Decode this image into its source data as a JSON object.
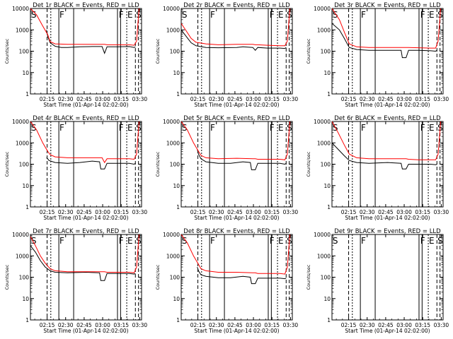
{
  "chart_data": [
    {
      "type": "line",
      "title": "Det 1r BLACK = Events, RED = LLD",
      "xlabel": "Start Time (01-Apr-14 02:02:00)",
      "ylabel": "Counts/sec",
      "ylog": true,
      "ylim": [
        1,
        10000
      ],
      "yticks": [
        "1",
        "10",
        "100",
        "1000",
        "10000"
      ],
      "xticks": [
        "02:15",
        "02:30",
        "02:45",
        "03:00",
        "03:15",
        "03:30"
      ],
      "markers": [
        "S",
        "F",
        "F",
        "E",
        "S"
      ],
      "series": [
        {
          "color": "#000000",
          "x": [
            13,
            14,
            16,
            20,
            25,
            30,
            40,
            50,
            58,
            60,
            62,
            70,
            80,
            84,
            85
          ],
          "y": [
            1000,
            500,
            250,
            170,
            150,
            150,
            160,
            165,
            165,
            80,
            160,
            160,
            165,
            150,
            160
          ]
        },
        {
          "color": "#ff0000",
          "x": [
            0,
            5,
            10,
            14,
            16,
            20,
            30,
            45,
            58,
            60,
            62,
            70,
            80,
            84,
            86,
            88
          ],
          "y": [
            10000,
            5000,
            1500,
            600,
            280,
            220,
            210,
            210,
            210,
            210,
            200,
            200,
            200,
            190,
            300,
            10000
          ]
        }
      ]
    },
    {
      "type": "line",
      "title": "Det 2r BLACK = Events, RED = LLD",
      "xlabel": "Start Time (01-Apr-14 02:02:00)",
      "ylabel": "Counts/sec",
      "ylog": true,
      "ylim": [
        1,
        10000
      ],
      "yticks": [
        "1",
        "10",
        "100",
        "1000",
        "10000"
      ],
      "xticks": [
        "02:15",
        "02:30",
        "02:45",
        "03:00",
        "03:15",
        "03:30"
      ],
      "markers": [
        "S",
        "F",
        "F",
        "E",
        "S"
      ],
      "series": [
        {
          "color": "#000000",
          "x": [
            0,
            4,
            8,
            12,
            20,
            30,
            45,
            50,
            58,
            60,
            62,
            70,
            80,
            84,
            85
          ],
          "y": [
            1000,
            500,
            250,
            180,
            150,
            145,
            150,
            160,
            150,
            110,
            150,
            140,
            140,
            135,
            150
          ]
        },
        {
          "color": "#ff0000",
          "x": [
            0,
            4,
            8,
            12,
            20,
            30,
            45,
            58,
            60,
            62,
            70,
            80,
            84,
            86,
            88
          ],
          "y": [
            2000,
            900,
            400,
            260,
            220,
            200,
            210,
            210,
            200,
            200,
            190,
            180,
            180,
            300,
            10000
          ]
        }
      ]
    },
    {
      "type": "line",
      "title": "Det 3r BLACK = Events, RED = LLD",
      "xlabel": "Start Time (01-Apr-14 02:02:00)",
      "ylabel": "Counts/sec",
      "ylog": true,
      "ylim": [
        1,
        10000
      ],
      "yticks": [
        "1",
        "10",
        "100",
        "1000",
        "10000"
      ],
      "xticks": [
        "02:15",
        "02:30",
        "02:45",
        "03:00",
        "03:15",
        "03:30"
      ],
      "markers": [
        "S",
        "F",
        "F",
        "E",
        "S"
      ],
      "series": [
        {
          "color": "#000000",
          "x": [
            0,
            6,
            10,
            14,
            20,
            30,
            45,
            56,
            57,
            60,
            62,
            70,
            80,
            84,
            85
          ],
          "y": [
            2000,
            1000,
            400,
            150,
            120,
            110,
            110,
            110,
            50,
            50,
            110,
            110,
            105,
            100,
            110
          ]
        },
        {
          "color": "#ff0000",
          "x": [
            0,
            6,
            10,
            14,
            20,
            30,
            45,
            58,
            60,
            62,
            70,
            80,
            84,
            86,
            88
          ],
          "y": [
            10000,
            3000,
            800,
            220,
            160,
            150,
            150,
            150,
            150,
            150,
            145,
            140,
            140,
            300,
            10000
          ]
        }
      ]
    },
    {
      "type": "line",
      "title": "Det 4r BLACK = Events, RED = LLD",
      "xlabel": "Start Time (01-Apr-14 02:02:00)",
      "ylabel": "Counts/sec",
      "ylog": true,
      "ylim": [
        1,
        10000
      ],
      "yticks": [
        "1",
        "10",
        "100",
        "1000",
        "10000"
      ],
      "xticks": [
        "02:15",
        "02:30",
        "02:45",
        "03:00",
        "03:15",
        "03:30"
      ],
      "markers": [
        "S",
        "F",
        "F",
        "E",
        "S"
      ],
      "series": [
        {
          "color": "#000000",
          "x": [
            13,
            14,
            15,
            20,
            30,
            40,
            50,
            56,
            57,
            60,
            62,
            70,
            80,
            84,
            85
          ],
          "y": [
            200,
            180,
            150,
            120,
            110,
            120,
            140,
            130,
            60,
            60,
            110,
            110,
            110,
            100,
            110
          ]
        },
        {
          "color": "#ff0000",
          "x": [
            0,
            5,
            10,
            14,
            16,
            20,
            30,
            45,
            58,
            60,
            62,
            70,
            80,
            84,
            86,
            88
          ],
          "y": [
            10000,
            4000,
            1000,
            400,
            280,
            220,
            200,
            200,
            200,
            120,
            180,
            180,
            180,
            170,
            300,
            10000
          ]
        }
      ]
    },
    {
      "type": "line",
      "title": "Det 5r BLACK = Events, RED = LLD",
      "xlabel": "Start Time (01-Apr-14 02:02:00)",
      "ylabel": "Counts/sec",
      "ylog": true,
      "ylim": [
        1,
        10000
      ],
      "yticks": [
        "1",
        "10",
        "100",
        "1000",
        "10000"
      ],
      "xticks": [
        "02:15",
        "02:30",
        "02:45",
        "03:00",
        "03:15",
        "03:30"
      ],
      "markers": [
        "S",
        "F",
        "F",
        "E",
        "S"
      ],
      "series": [
        {
          "color": "#000000",
          "x": [
            13,
            14,
            16,
            20,
            30,
            40,
            50,
            56,
            57,
            60,
            62,
            70,
            80,
            84,
            85
          ],
          "y": [
            500,
            300,
            180,
            130,
            110,
            110,
            130,
            120,
            55,
            55,
            110,
            110,
            110,
            100,
            110
          ]
        },
        {
          "color": "#ff0000",
          "x": [
            0,
            5,
            10,
            14,
            16,
            20,
            30,
            45,
            58,
            60,
            62,
            70,
            80,
            84,
            86,
            88
          ],
          "y": [
            10000,
            4000,
            1000,
            400,
            260,
            200,
            180,
            190,
            180,
            180,
            170,
            170,
            170,
            160,
            300,
            10000
          ]
        }
      ]
    },
    {
      "type": "line",
      "title": "Det 6r BLACK = Events, RED = LLD",
      "xlabel": "Start Time (01-Apr-14 02:02:00)",
      "ylabel": "Counts/sec",
      "ylog": true,
      "ylim": [
        1,
        10000
      ],
      "yticks": [
        "1",
        "10",
        "100",
        "1000",
        "10000"
      ],
      "xticks": [
        "02:15",
        "02:30",
        "02:45",
        "03:00",
        "03:15",
        "03:30"
      ],
      "markers": [
        "S",
        "F",
        "F",
        "E",
        "S"
      ],
      "series": [
        {
          "color": "#000000",
          "x": [
            0,
            5,
            10,
            14,
            20,
            30,
            45,
            56,
            57,
            60,
            62,
            70,
            80,
            84,
            85
          ],
          "y": [
            1000,
            500,
            250,
            150,
            120,
            110,
            120,
            110,
            60,
            60,
            100,
            100,
            100,
            95,
            100
          ]
        },
        {
          "color": "#ff0000",
          "x": [
            0,
            5,
            10,
            14,
            20,
            30,
            45,
            58,
            60,
            62,
            70,
            80,
            84,
            86,
            88
          ],
          "y": [
            10000,
            3000,
            800,
            300,
            200,
            180,
            180,
            180,
            180,
            170,
            160,
            160,
            160,
            300,
            10000
          ]
        }
      ]
    },
    {
      "type": "line",
      "title": "Det 7r BLACK = Events, RED = LLD",
      "xlabel": "Start Time (01-Apr-14 02:02:00)",
      "ylabel": "Counts/sec",
      "ylog": true,
      "ylim": [
        1,
        10000
      ],
      "yticks": [
        "1",
        "10",
        "100",
        "1000",
        "10000"
      ],
      "xticks": [
        "02:15",
        "02:30",
        "02:45",
        "03:00",
        "03:15",
        "03:30"
      ],
      "markers": [
        "S",
        "F",
        "F",
        "E",
        "S"
      ],
      "series": [
        {
          "color": "#000000",
          "x": [
            0,
            4,
            8,
            12,
            16,
            20,
            30,
            45,
            56,
            57,
            60,
            62,
            70,
            80,
            84,
            85
          ],
          "y": [
            3000,
            1500,
            600,
            300,
            200,
            170,
            160,
            170,
            160,
            70,
            70,
            150,
            150,
            150,
            140,
            150
          ]
        },
        {
          "color": "#ff0000",
          "x": [
            0,
            4,
            8,
            12,
            16,
            20,
            30,
            45,
            58,
            60,
            62,
            70,
            80,
            84,
            86,
            88
          ],
          "y": [
            8000,
            3000,
            1000,
            450,
            250,
            200,
            180,
            180,
            180,
            180,
            170,
            170,
            170,
            160,
            300,
            10000
          ]
        }
      ]
    },
    {
      "type": "line",
      "title": "Det 8r BLACK = Events, RED = LLD",
      "xlabel": "Start Time (01-Apr-14 02:02:00)",
      "ylabel": "Counts/sec",
      "ylog": true,
      "ylim": [
        1,
        10000
      ],
      "yticks": [
        "1",
        "10",
        "100",
        "1000",
        "10000"
      ],
      "xticks": [
        "02:15",
        "02:30",
        "02:45",
        "03:00",
        "03:15",
        "03:30"
      ],
      "markers": [
        "S",
        "F",
        "F",
        "E",
        "S"
      ],
      "series": [
        {
          "color": "#000000",
          "x": [
            13,
            14,
            16,
            20,
            30,
            40,
            50,
            56,
            57,
            60,
            62,
            70,
            80,
            84,
            85
          ],
          "y": [
            300,
            200,
            130,
            110,
            95,
            95,
            110,
            100,
            50,
            50,
            90,
            90,
            90,
            85,
            90
          ]
        },
        {
          "color": "#ff0000",
          "x": [
            0,
            5,
            10,
            14,
            16,
            20,
            30,
            45,
            58,
            60,
            62,
            70,
            80,
            84,
            86,
            88
          ],
          "y": [
            10000,
            4000,
            1000,
            400,
            250,
            200,
            170,
            170,
            160,
            160,
            150,
            150,
            150,
            140,
            300,
            10000
          ]
        }
      ]
    },
    {
      "type": "line",
      "title": "Det 9r BLACK = Events, RED = LLD",
      "xlabel": "Start Time (01-Apr-14 02:02:00)",
      "ylabel": "Counts/sec",
      "ylog": true,
      "ylim": [
        1,
        10000
      ],
      "yticks": [
        "1",
        "10",
        "100",
        "1000",
        "10000"
      ],
      "xticks": [
        "02:15",
        "02:30",
        "02:45",
        "03:00",
        "03:15",
        "03:30"
      ],
      "markers": [
        "S",
        "F",
        "F",
        "E",
        "S"
      ],
      "series": []
    }
  ]
}
